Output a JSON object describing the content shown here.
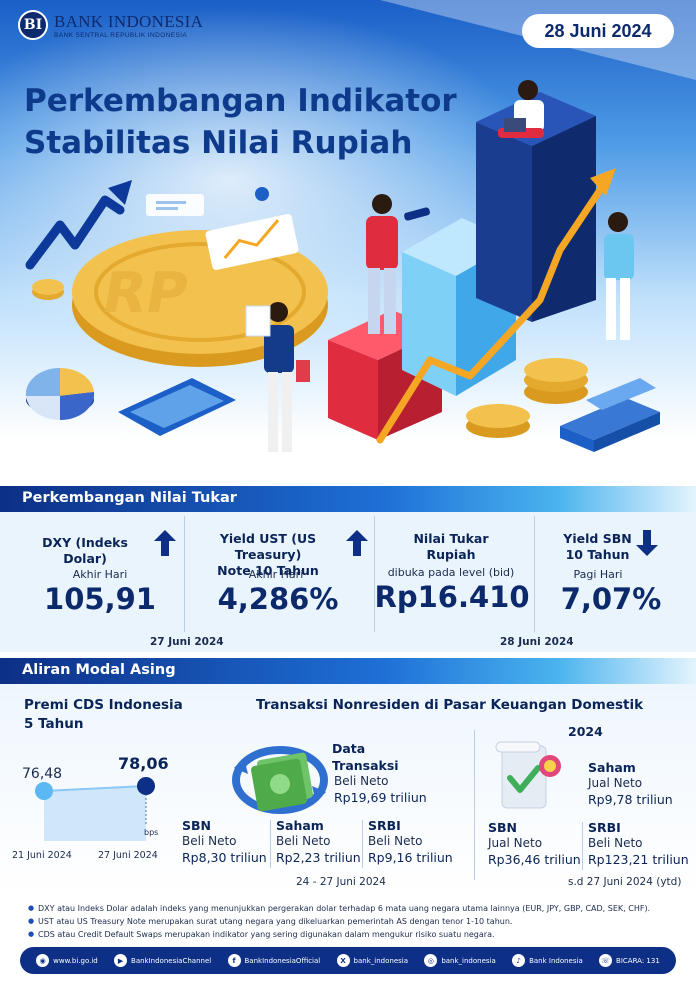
{
  "header": {
    "logo_mark": "BI",
    "org_name": "BANK INDONESIA",
    "org_sub": "BANK SENTRAL REPUBLIK INDONESIA",
    "date": "28 Juni 2024",
    "title_line1": "Perkembangan Indikator",
    "title_line2": "Stabilitas Nilai Rupiah"
  },
  "nilai_tukar": {
    "section_title": "Perkembangan Nilai Tukar",
    "cards": [
      {
        "title": "DXY (Indeks Dolar)",
        "sub": "Akhir Hari",
        "value": "105,91",
        "trend": "up"
      },
      {
        "title_line1": "Yield UST (US Treasury)",
        "title_line2": "Note  10 Tahun",
        "sub": "Akhir Hari",
        "value": "4,286%",
        "trend": "up"
      },
      {
        "title_line1": "Nilai Tukar",
        "title_line2": "Rupiah",
        "sub": "dibuka pada level (bid)",
        "value": "Rp16.410"
      },
      {
        "title_line1": "Yield SBN",
        "title_line2": "10 Tahun",
        "sub": "Pagi Hari",
        "value": "7,07%",
        "trend": "down"
      }
    ],
    "date_left": "27 Juni 2024",
    "date_right": "28 Juni 2024"
  },
  "aliran": {
    "section_title": "Aliran Modal Asing",
    "cds": {
      "title_line1": "Premi CDS Indonesia",
      "title_line2": "5 Tahun",
      "unit": "bps",
      "points": [
        {
          "date": "21 Juni 2024",
          "value": "76,48"
        },
        {
          "date": "27 Juni 2024",
          "value": "78,06"
        }
      ]
    },
    "transaksi": {
      "title": "Transaksi Nonresiden di Pasar Keuangan Domestik",
      "data_label_line1": "Data",
      "data_label_line2": "Transaksi",
      "data_sub": "Beli Neto",
      "data_val": "Rp19,69 triliun",
      "items": [
        {
          "label": "SBN",
          "sub": "Beli Neto",
          "value": "Rp8,30 triliun"
        },
        {
          "label": "Saham",
          "sub": "Beli Neto",
          "value": "Rp2,23 triliun"
        },
        {
          "label": "SRBI",
          "sub": "Beli Neto",
          "value": "Rp9,16 triliun"
        }
      ],
      "period": "24 - 27 Juni  2024"
    },
    "ytd": {
      "year": "2024",
      "saham_label": "Saham",
      "saham_sub": "Jual Neto",
      "saham_val": "Rp9,78 triliun",
      "sbn_label": "SBN",
      "sbn_sub": "Jual Neto",
      "sbn_val": "Rp36,46 triliun",
      "srbi_label": "SRBI",
      "srbi_sub": "Beli Neto",
      "srbi_val": "Rp123,21 triliun",
      "period": "s.d 27 Juni 2024 (ytd)"
    }
  },
  "notes": [
    "DXY atau Indeks Dolar adalah indeks yang menunjukkan pergerakan dolar terhadap 6 mata uang negara utama lainnya (EUR, JPY, GBP, CAD, SEK, CHF).",
    "UST atau US Treasury Note merupakan surat utang negara yang dikeluarkan  pemerintah AS dengan tenor 1-10 tahun.",
    "CDS atau Credit Default Swaps merupakan indikator  yang sering digunakan dalam mengukur risiko suatu negara."
  ],
  "footer": [
    {
      "icon": "globe-icon",
      "glyph": "◉",
      "text": "www.bi.go.id"
    },
    {
      "icon": "youtube-icon",
      "glyph": "▶",
      "text": "BankIndonesiaChannel"
    },
    {
      "icon": "facebook-icon",
      "glyph": "f",
      "text": "BankIndonesiaOfficial"
    },
    {
      "icon": "x-icon",
      "glyph": "X",
      "text": "bank_indonesia"
    },
    {
      "icon": "instagram-icon",
      "glyph": "◎",
      "text": "bank_indonesia"
    },
    {
      "icon": "tiktok-icon",
      "glyph": "♪",
      "text": "Bank Indonesia"
    },
    {
      "icon": "bicara-icon",
      "glyph": "☏",
      "text": "BICARA: 131"
    }
  ],
  "colors": {
    "brand_navy": "#0d2f86",
    "title_blue": "#0e3a8c",
    "accent_orange": "#f5a623",
    "gold": "#f2c14e"
  }
}
